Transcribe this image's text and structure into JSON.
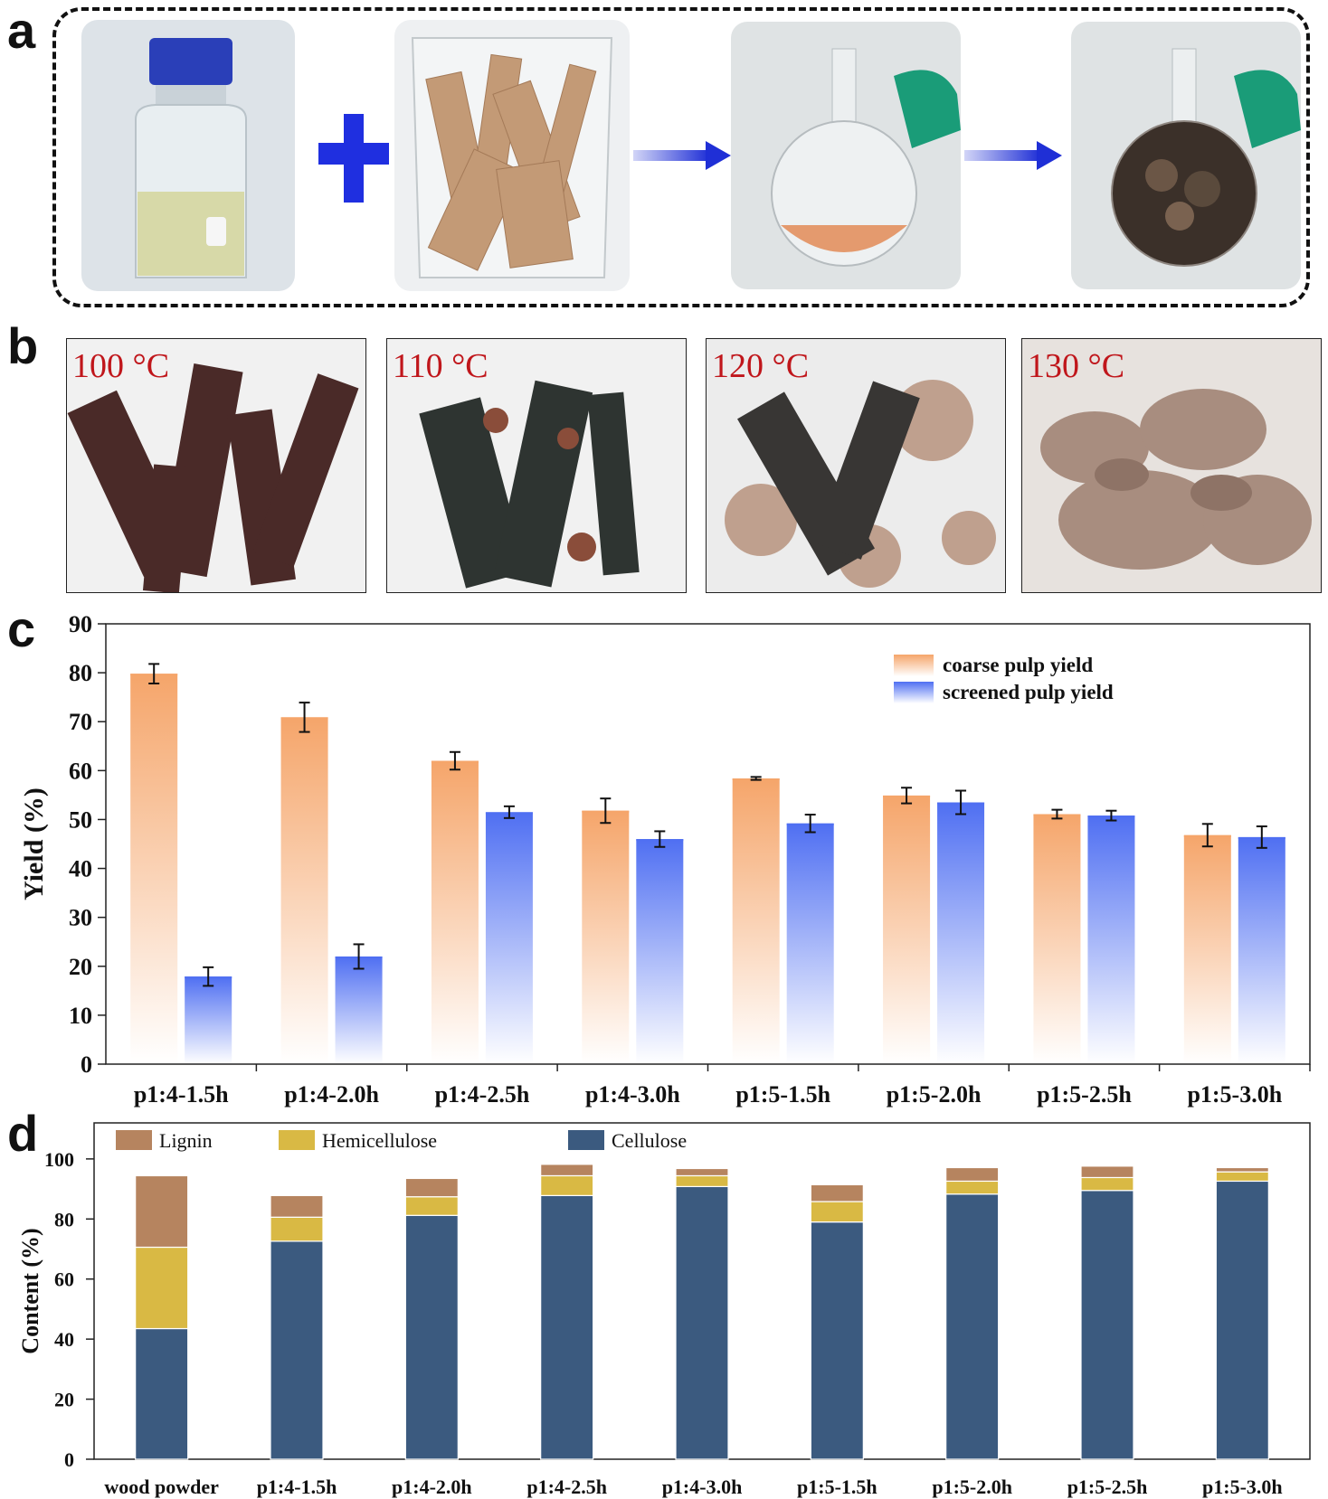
{
  "panels": {
    "a": {
      "letter": "a"
    },
    "b": {
      "letter": "b",
      "temperatures": [
        "100 °C",
        "110 °C",
        "120 °C",
        "130 °C"
      ]
    },
    "c": {
      "letter": "c"
    },
    "d": {
      "letter": "d"
    }
  },
  "colors": {
    "coarse": "#f5a56a",
    "screened": "#4f6ff2",
    "lignin": "#b6845f",
    "hemicellulose": "#d9b944",
    "cellulose": "#3b5a7f",
    "arrow": "#1f2fd6",
    "plus": "#1f2fe0"
  },
  "chart_data": [
    {
      "type": "bar",
      "panel": "c",
      "ylabel": "Yield (%)",
      "xlabel": "",
      "ylim": [
        0,
        90
      ],
      "yticks": [
        0,
        10,
        20,
        30,
        40,
        50,
        60,
        70,
        80,
        90
      ],
      "categories": [
        "p1:4-1.5h",
        "p1:4-2.0h",
        "p1:4-2.5h",
        "p1:4-3.0h",
        "p1:5-1.5h",
        "p1:5-2.0h",
        "p1:5-2.5h",
        "p1:5-3.0h"
      ],
      "legend_position": "top-right",
      "series": [
        {
          "name": "coarse pulp yield",
          "values": [
            79.8,
            70.9,
            62.0,
            51.8,
            58.4,
            54.9,
            51.1,
            46.8
          ],
          "errors": [
            2.0,
            3.0,
            1.8,
            2.5,
            0.3,
            1.6,
            0.9,
            2.3
          ]
        },
        {
          "name": "screened pulp yield",
          "values": [
            17.9,
            22.0,
            51.5,
            46.0,
            49.2,
            53.5,
            50.8,
            46.4
          ],
          "errors": [
            1.9,
            2.5,
            1.2,
            1.6,
            1.8,
            2.4,
            1.0,
            2.2
          ]
        }
      ]
    },
    {
      "type": "bar",
      "stacked": true,
      "panel": "d",
      "ylabel": "Content (%)",
      "xlabel": "",
      "ylim": [
        0,
        112
      ],
      "yticks": [
        0,
        20,
        40,
        60,
        80,
        100
      ],
      "categories": [
        "wood powder",
        "p1:4-1.5h",
        "p1:4-2.0h",
        "p1:4-2.5h",
        "p1:4-3.0h",
        "p1:5-1.5h",
        "p1:5-2.0h",
        "p1:5-2.5h",
        "p1:5-3.0h"
      ],
      "legend_position": "top-left",
      "series": [
        {
          "name": "Cellulose",
          "values": [
            43.5,
            72.6,
            81.2,
            87.8,
            90.8,
            79.0,
            88.3,
            89.5,
            92.6
          ]
        },
        {
          "name": "Hemicellulose",
          "values": [
            27.1,
            8.0,
            6.2,
            6.6,
            3.6,
            6.8,
            4.3,
            4.3,
            3.1
          ]
        },
        {
          "name": "Lignin",
          "values": [
            23.8,
            7.2,
            6.1,
            3.8,
            2.4,
            5.6,
            4.5,
            3.8,
            1.4
          ]
        }
      ],
      "legend_order": [
        "Lignin",
        "Hemicellulose",
        "Cellulose"
      ]
    }
  ]
}
